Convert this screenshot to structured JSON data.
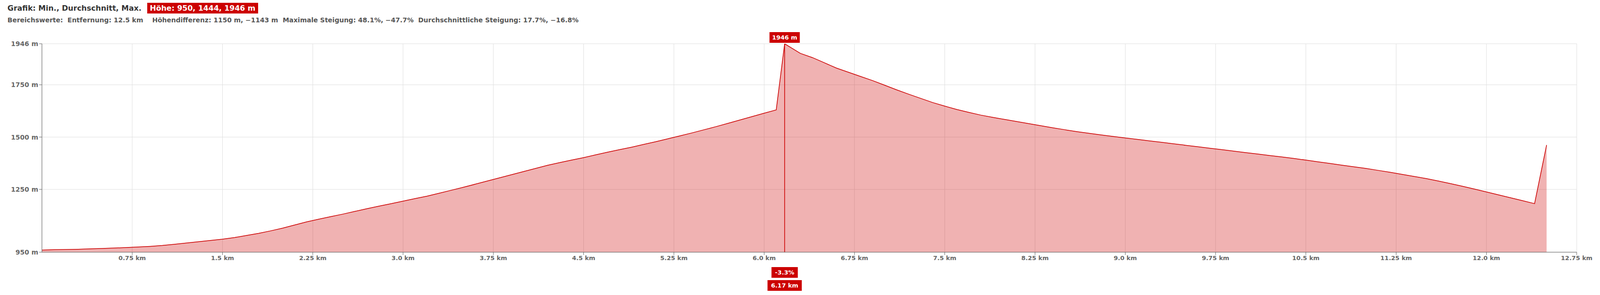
{
  "chart_data": {
    "type": "area",
    "title": "Grafik: Min., Durchschnitt, Max.",
    "title_highlight": "Höhe: 950, 1444, 1946 m",
    "subtitle": "Bereichswerte:  Entfernung: 12.5 km    Höhendifferenz: 1150 m, −1143 m  Maximale Steigung: 48.1%, −47.7%  Durchschnittliche Steigung: 17.7%, −16.8%",
    "color": "#cc0000",
    "x": [
      0.0,
      0.1,
      0.2,
      0.3,
      0.4,
      0.5,
      0.6,
      0.7,
      0.8,
      0.9,
      1.0,
      1.1,
      1.2,
      1.3,
      1.4,
      1.5,
      1.6,
      1.7,
      1.8,
      1.9,
      2.0,
      2.1,
      2.2,
      2.3,
      2.4,
      2.5,
      2.6,
      2.7,
      2.8,
      2.9,
      3.0,
      3.1,
      3.2,
      3.3,
      3.4,
      3.5,
      3.6,
      3.7,
      3.8,
      3.9,
      4.0,
      4.1,
      4.2,
      4.3,
      4.4,
      4.5,
      4.6,
      4.7,
      4.8,
      4.9,
      5.0,
      5.1,
      5.2,
      5.3,
      5.4,
      5.5,
      5.6,
      5.7,
      5.8,
      5.9,
      6.0,
      6.1,
      6.17,
      6.3,
      6.4,
      6.5,
      6.6,
      6.7,
      6.8,
      6.9,
      7.0,
      7.1,
      7.2,
      7.3,
      7.4,
      7.5,
      7.6,
      7.7,
      7.8,
      7.9,
      8.0,
      8.1,
      8.2,
      8.3,
      8.4,
      8.5,
      8.6,
      8.7,
      8.8,
      8.9,
      9.0,
      9.1,
      9.2,
      9.3,
      9.4,
      9.5,
      9.6,
      9.7,
      9.8,
      9.9,
      10.0,
      10.1,
      10.2,
      10.3,
      10.4,
      10.5,
      10.6,
      10.7,
      10.8,
      10.9,
      11.0,
      11.1,
      11.2,
      11.3,
      11.4,
      11.5,
      11.6,
      11.7,
      11.8,
      11.9,
      12.0,
      12.1,
      12.2,
      12.3,
      12.4,
      12.5
    ],
    "values": [
      960,
      962,
      963,
      964,
      966,
      968,
      970,
      972,
      975,
      978,
      982,
      988,
      994,
      1000,
      1006,
      1012,
      1020,
      1030,
      1040,
      1052,
      1065,
      1080,
      1095,
      1108,
      1120,
      1132,
      1145,
      1158,
      1170,
      1182,
      1194,
      1206,
      1218,
      1232,
      1246,
      1260,
      1275,
      1290,
      1305,
      1320,
      1335,
      1350,
      1365,
      1378,
      1390,
      1402,
      1415,
      1428,
      1440,
      1452,
      1465,
      1478,
      1492,
      1506,
      1520,
      1535,
      1550,
      1566,
      1582,
      1598,
      1614,
      1630,
      1946,
      1900,
      1880,
      1855,
      1830,
      1810,
      1790,
      1770,
      1748,
      1726,
      1705,
      1685,
      1665,
      1648,
      1632,
      1618,
      1605,
      1594,
      1584,
      1574,
      1564,
      1554,
      1544,
      1535,
      1526,
      1518,
      1510,
      1503,
      1496,
      1489,
      1482,
      1475,
      1468,
      1461,
      1454,
      1447,
      1440,
      1433,
      1426,
      1419,
      1412,
      1405,
      1398,
      1390,
      1382,
      1374,
      1366,
      1358,
      1350,
      1341,
      1332,
      1322,
      1312,
      1302,
      1290,
      1278,
      1265,
      1252,
      1238,
      1224,
      1210,
      1196,
      1182,
      1462
    ],
    "xlim": [
      0,
      12.75
    ],
    "ylim": [
      950,
      1946
    ],
    "xticks": [
      {
        "value": 0.75,
        "label": "0.75 km"
      },
      {
        "value": 1.5,
        "label": "1.5 km"
      },
      {
        "value": 2.25,
        "label": "2.25 km"
      },
      {
        "value": 3.0,
        "label": "3.0 km"
      },
      {
        "value": 3.75,
        "label": "3.75 km"
      },
      {
        "value": 4.5,
        "label": "4.5 km"
      },
      {
        "value": 5.25,
        "label": "5.25 km"
      },
      {
        "value": 6.0,
        "label": "6.0 km"
      },
      {
        "value": 6.75,
        "label": "6.75 km"
      },
      {
        "value": 7.5,
        "label": "7.5 km"
      },
      {
        "value": 8.25,
        "label": "8.25 km"
      },
      {
        "value": 9.0,
        "label": "9.0 km"
      },
      {
        "value": 9.75,
        "label": "9.75 km"
      },
      {
        "value": 10.5,
        "label": "10.5 km"
      },
      {
        "value": 11.25,
        "label": "11.25 km"
      },
      {
        "value": 12.0,
        "label": "12.0 km"
      },
      {
        "value": 12.75,
        "label": "12.75 km"
      }
    ],
    "yticks": [
      {
        "value": 950,
        "label": "950 m"
      },
      {
        "value": 1250,
        "label": "1250 m"
      },
      {
        "value": 1500,
        "label": "1500 m"
      },
      {
        "value": 1750,
        "label": "1750 m"
      },
      {
        "value": 1946,
        "label": "1946 m"
      }
    ],
    "grid": true,
    "annotations": [
      {
        "text": "1946 m",
        "x": 6.17,
        "y": 1946
      },
      {
        "text": "-3.3%",
        "x": 6.17
      },
      {
        "text": "6.17 km",
        "x": 6.17
      }
    ]
  }
}
